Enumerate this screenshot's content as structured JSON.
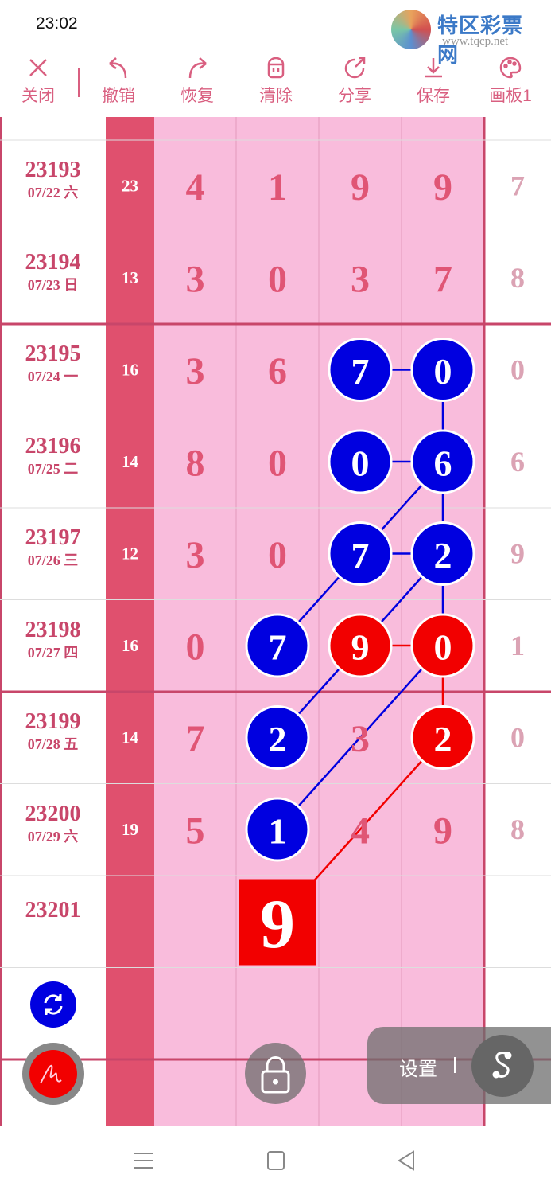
{
  "status_bar": {
    "time": "23:02"
  },
  "watermark": {
    "name": "特区彩票网",
    "url": "www.tqcp.net"
  },
  "toolbar": [
    {
      "label": "关闭",
      "icon": "close-icon"
    },
    {
      "label": "撤销",
      "icon": "undo-icon"
    },
    {
      "label": "恢复",
      "icon": "redo-icon"
    },
    {
      "label": "清除",
      "icon": "trash-icon"
    },
    {
      "label": "分享",
      "icon": "share-icon"
    },
    {
      "label": "保存",
      "icon": "download-icon"
    },
    {
      "label": "画板1",
      "icon": "palette-icon"
    }
  ],
  "rows": [
    {
      "issue": "23193",
      "date": "07/22 六",
      "sum": "23",
      "digits": [
        "4",
        "1",
        "9",
        "9"
      ],
      "extra": "7"
    },
    {
      "issue": "23194",
      "date": "07/23 日",
      "sum": "13",
      "digits": [
        "3",
        "0",
        "3",
        "7"
      ],
      "extra": "8"
    },
    {
      "issue": "23195",
      "date": "07/24 一",
      "sum": "16",
      "digits": [
        "3",
        "6",
        "7",
        "0"
      ],
      "extra": "0"
    },
    {
      "issue": "23196",
      "date": "07/25 二",
      "sum": "14",
      "digits": [
        "8",
        "0",
        "0",
        "6"
      ],
      "extra": "6"
    },
    {
      "issue": "23197",
      "date": "07/26 三",
      "sum": "12",
      "digits": [
        "3",
        "0",
        "7",
        "2"
      ],
      "extra": "9"
    },
    {
      "issue": "23198",
      "date": "07/27 四",
      "sum": "16",
      "digits": [
        "0",
        "7",
        "9",
        "0"
      ],
      "extra": "1"
    },
    {
      "issue": "23199",
      "date": "07/28 五",
      "sum": "14",
      "digits": [
        "7",
        "2",
        "3",
        "2"
      ],
      "extra": "0"
    },
    {
      "issue": "23200",
      "date": "07/29 六",
      "sum": "19",
      "digits": [
        "5",
        "1",
        "4",
        "9"
      ],
      "extra": "8"
    },
    {
      "issue": "23201",
      "date": "",
      "sum": "",
      "digits": [
        "",
        "",
        "",
        ""
      ],
      "extra": ""
    }
  ],
  "markers": [
    {
      "row": 2,
      "col": 2,
      "color": "blue"
    },
    {
      "row": 2,
      "col": 3,
      "color": "blue"
    },
    {
      "row": 3,
      "col": 2,
      "color": "blue"
    },
    {
      "row": 3,
      "col": 3,
      "color": "blue"
    },
    {
      "row": 4,
      "col": 2,
      "color": "blue"
    },
    {
      "row": 4,
      "col": 3,
      "color": "blue"
    },
    {
      "row": 5,
      "col": 1,
      "color": "blue"
    },
    {
      "row": 5,
      "col": 2,
      "color": "red"
    },
    {
      "row": 5,
      "col": 3,
      "color": "red"
    },
    {
      "row": 6,
      "col": 1,
      "color": "blue"
    },
    {
      "row": 6,
      "col": 3,
      "color": "red"
    },
    {
      "row": 7,
      "col": 1,
      "color": "blue"
    }
  ],
  "lines": [
    {
      "color": "blue",
      "pts": [
        [
          2,
          2
        ],
        [
          2,
          3
        ]
      ]
    },
    {
      "color": "blue",
      "pts": [
        [
          3,
          2
        ],
        [
          3,
          3
        ]
      ]
    },
    {
      "color": "blue",
      "pts": [
        [
          4,
          2
        ],
        [
          4,
          3
        ]
      ]
    },
    {
      "color": "red",
      "pts": [
        [
          5,
          2
        ],
        [
          5,
          3
        ]
      ]
    },
    {
      "color": "blue",
      "pts": [
        [
          2,
          3
        ],
        [
          3,
          3
        ],
        [
          4,
          3
        ],
        [
          5,
          3
        ]
      ]
    },
    {
      "color": "red",
      "pts": [
        [
          5,
          3
        ],
        [
          6,
          3
        ]
      ]
    },
    {
      "color": "blue",
      "pts": [
        [
          3,
          3
        ],
        [
          4,
          2
        ],
        [
          5,
          1
        ]
      ]
    },
    {
      "color": "blue",
      "pts": [
        [
          4,
          3
        ],
        [
          5,
          2
        ],
        [
          6,
          1
        ]
      ]
    },
    {
      "color": "blue",
      "pts": [
        [
          5,
          3
        ],
        [
          6,
          2
        ],
        [
          7,
          1
        ]
      ]
    },
    {
      "color": "red",
      "pts": [
        [
          6,
          3
        ],
        [
          7,
          2
        ],
        [
          8,
          1
        ]
      ]
    }
  ],
  "prediction": {
    "row": 8,
    "col": 1,
    "value": "9"
  },
  "colors": {
    "accent": "#d95f80",
    "sum_col": "#e0506e",
    "grid_bg": "#f9bcdc",
    "blue": "#0000e0",
    "red": "#f20000"
  },
  "settings_label": "设置"
}
